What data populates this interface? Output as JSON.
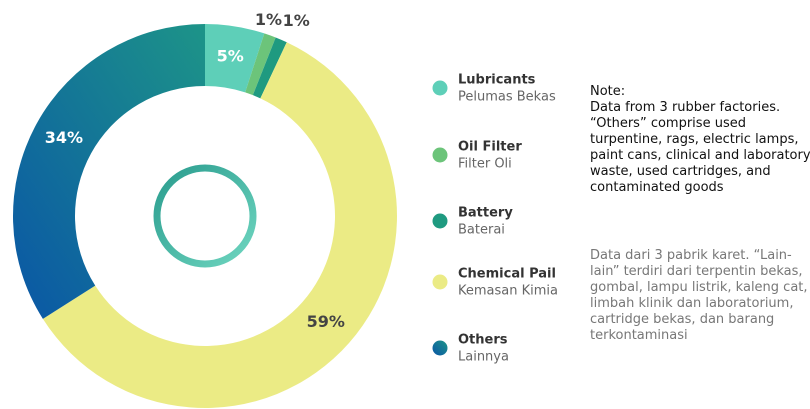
{
  "chart_data": {
    "type": "donut",
    "series": [
      {
        "name": "Lubricants",
        "subtitle": "Pelumas Bekas",
        "color": "#5ecfb8",
        "values": [
          5
        ],
        "value_labels": [
          "5%"
        ]
      },
      {
        "name": "Oil Filter",
        "subtitle": "Filter Oli",
        "color": "#6cc47a",
        "values": [
          1
        ],
        "value_labels": [
          "1%"
        ]
      },
      {
        "name": "Battery",
        "subtitle": "Baterai",
        "color": "#1f9a80",
        "values": [
          1
        ],
        "value_labels": [
          "1%"
        ]
      },
      {
        "name": "Chemical Pail",
        "subtitle": "Kemasan Kimia",
        "color": "#ebeb85",
        "values": [
          59
        ],
        "value_labels": [
          "59%"
        ]
      },
      {
        "name": "Others",
        "subtitle": "Lainnya",
        "color": "#0a56a6",
        "values": [
          34
        ],
        "value_labels": [
          "34%"
        ]
      }
    ],
    "note_title": "Note:",
    "note_en": "Data from 3 rubber factories. “Others” comprise used turpentine, rags, electric lamps, paint cans, clinical and laboratory waste, used cartridges, and contaminated goods",
    "note_id": "Data dari 3 pabrik karet. “Lain-lain” terdiri dari terpentin bekas, gombal, lampu listrik, kaleng cat, limbah klinik dan laboratorium, cartridge bekas, dan barang terkontaminasi"
  }
}
